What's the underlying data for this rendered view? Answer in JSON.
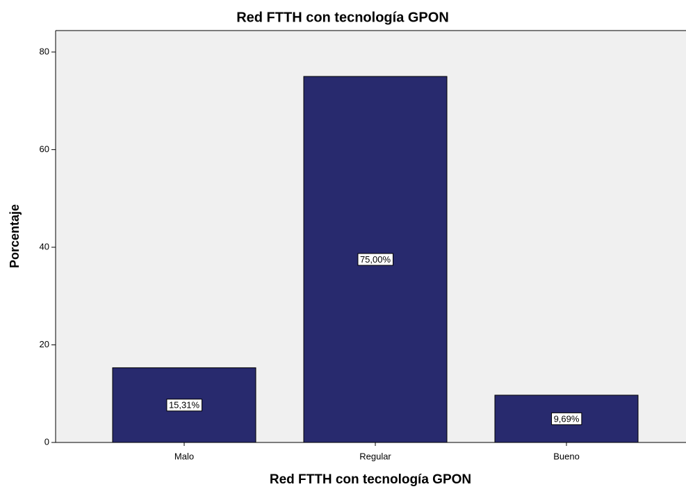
{
  "chart_data": {
    "type": "bar",
    "title": "Red FTTH con tecnología GPON",
    "x_label": "Red FTTH con tecnología GPON",
    "y_label": "Porcentaje",
    "categories": [
      "Malo",
      "Regular",
      "Bueno"
    ],
    "values": [
      15.31,
      75,
      9.69
    ],
    "value_labels": [
      "15,31%",
      "75,00%",
      "9,69%"
    ],
    "color": "#282a6e",
    "ylim": [
      0,
      84.4
    ],
    "yticks": [
      0,
      20,
      40,
      60,
      80
    ],
    "grid": false
  }
}
